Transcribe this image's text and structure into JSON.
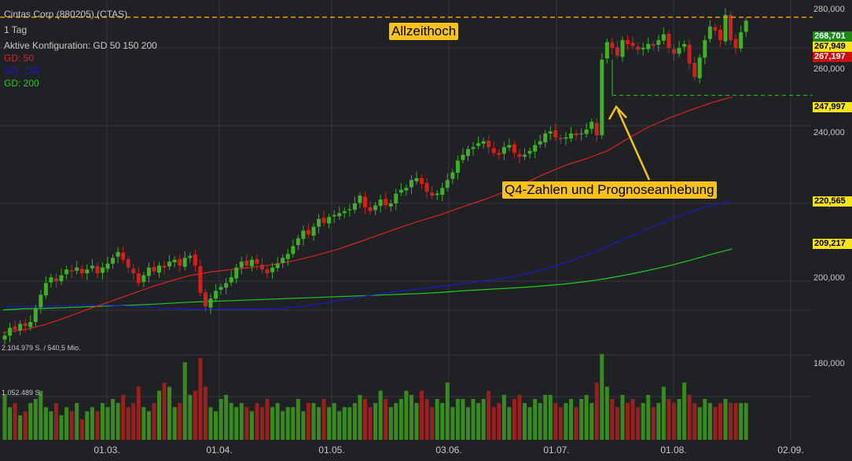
{
  "header": {
    "title": "Cintas Corp (880205) (CTAS)",
    "interval": "1 Tag",
    "config": "Aktive Konfiguration: GD 50 150 200"
  },
  "legend": [
    {
      "label": "GD: 50",
      "color": "#dd2222"
    },
    {
      "label": "GD: 150",
      "color": "#1a1acc"
    },
    {
      "label": "GD: 200",
      "color": "#22cc22"
    }
  ],
  "annotations": {
    "allzeithoch": "Allzeithoch",
    "q4": "Q4-Zahlen und Prognoseanhebung"
  },
  "volume_labels": {
    "top": "2.104.979 S. / 540,5 Mio.",
    "mid": "1.052.489 S."
  },
  "price_tags": [
    {
      "text": "268,701",
      "bg": "#1c8a1c",
      "fg": "#ffffff"
    },
    {
      "text": "267,949",
      "bg": "#f6e31b",
      "fg": "#000000"
    },
    {
      "text": "267,197",
      "bg": "#cc1010",
      "fg": "#ffffff"
    },
    {
      "text": "247,997",
      "bg": "#f6e31b",
      "fg": "#000000"
    },
    {
      "text": "220,565",
      "bg": "#f6e31b",
      "fg": "#000000"
    },
    {
      "text": "209,217",
      "bg": "#f6e31b",
      "fg": "#000000"
    }
  ],
  "colors": {
    "background": "#1f2125",
    "up": "#3fb028",
    "down": "#d1201e",
    "gd50": "#dd2222",
    "gd150": "#1a1acc",
    "gd200": "#22cc22",
    "annotation": "#f6c21b",
    "ath_line": "#f0a000",
    "support_line": "#22cc22"
  },
  "chart_data": {
    "type": "candlestick",
    "y_axis": {
      "ticks": [
        "280,000",
        "260,000",
        "240,000",
        "220,000",
        "200,000",
        "180,000"
      ],
      "range": [
        178,
        282
      ]
    },
    "x_axis": {
      "ticks": [
        "01.03.",
        "01.04.",
        "01.05.",
        "03.06.",
        "01.07.",
        "01.08.",
        "02.09."
      ]
    },
    "all_time_high": 267.9,
    "support_level": 248.0,
    "close": [
      186.0,
      188.0,
      187.5,
      189.0,
      188.5,
      189.5,
      193.0,
      196.5,
      199.5,
      201.0,
      200.0,
      201.5,
      203.0,
      202.5,
      203.5,
      202.0,
      203.0,
      204.0,
      202.0,
      203.5,
      204.5,
      206.0,
      207.5,
      205.5,
      203.5,
      202.0,
      199.5,
      201.5,
      203.5,
      202.5,
      204.0,
      203.5,
      205.0,
      205.5,
      204.0,
      206.0,
      206.5,
      204.0,
      197.0,
      193.5,
      195.5,
      197.5,
      198.5,
      199.5,
      201.0,
      203.5,
      205.0,
      204.0,
      205.5,
      204.5,
      203.0,
      202.0,
      203.5,
      204.5,
      206.0,
      207.0,
      209.0,
      211.0,
      213.0,
      212.0,
      214.0,
      216.0,
      215.0,
      216.5,
      217.0,
      217.5,
      218.0,
      218.5,
      220.0,
      222.0,
      219.0,
      218.0,
      219.5,
      221.0,
      219.5,
      220.0,
      222.5,
      223.5,
      224.0,
      226.0,
      226.5,
      225.0,
      223.0,
      222.0,
      222.5,
      224.0,
      226.0,
      228.0,
      231.0,
      232.5,
      234.0,
      234.5,
      235.5,
      236.0,
      234.5,
      233.0,
      232.5,
      234.5,
      235.0,
      233.0,
      232.0,
      232.5,
      233.5,
      235.0,
      236.0,
      238.0,
      238.5,
      237.0,
      236.5,
      237.0,
      238.0,
      237.5,
      238.0,
      239.0,
      241.0,
      237.5,
      257.0,
      261.5,
      260.0,
      258.0,
      262.0,
      261.0,
      260.5,
      259.5,
      260.0,
      261.0,
      260.5,
      262.0,
      263.5,
      260.0,
      258.5,
      260.0,
      261.0,
      256.0,
      252.5,
      257.5,
      262.0,
      265.5,
      264.5,
      262.0,
      268.5,
      262.0,
      260.0,
      264.0,
      267.0
    ],
    "volume_million": [
      1.1,
      0.8,
      0.9,
      0.6,
      0.7,
      0.9,
      1.0,
      1.2,
      0.8,
      0.7,
      0.9,
      0.6,
      0.8,
      0.7,
      0.9,
      0.5,
      0.7,
      0.8,
      0.7,
      0.9,
      0.8,
      1.0,
      0.9,
      1.1,
      0.8,
      0.9,
      1.3,
      0.8,
      0.7,
      0.9,
      1.2,
      1.4,
      1.3,
      0.8,
      0.9,
      1.9,
      1.1,
      1.2,
      2.0,
      1.3,
      0.8,
      0.7,
      1.0,
      1.1,
      0.9,
      0.8,
      0.9,
      0.8,
      0.7,
      0.9,
      0.8,
      1.0,
      0.8,
      0.9,
      0.7,
      0.8,
      0.8,
      1.0,
      0.7,
      0.9,
      0.9,
      0.8,
      1.0,
      0.8,
      0.9,
      0.7,
      0.8,
      0.8,
      0.9,
      1.1,
      1.0,
      0.8,
      0.9,
      1.2,
      1.0,
      0.8,
      0.9,
      1.0,
      1.2,
      1.1,
      0.9,
      1.2,
      1.0,
      0.8,
      1.0,
      0.9,
      1.4,
      0.8,
      1.0,
      1.0,
      0.8,
      1.0,
      0.9,
      1.0,
      1.2,
      0.8,
      0.9,
      1.1,
      0.8,
      1.0,
      1.1,
      0.9,
      0.8,
      1.0,
      0.9,
      1.1,
      1.1,
      0.9,
      0.8,
      0.9,
      1.0,
      0.8,
      1.0,
      1.1,
      0.9,
      1.4,
      2.1,
      1.3,
      1.0,
      0.8,
      1.1,
      0.9,
      1.0,
      0.8,
      0.9,
      1.1,
      0.8,
      0.9,
      1.3,
      1.0,
      0.9,
      1.0,
      1.4,
      1.1,
      0.9,
      0.8,
      1.0,
      0.9,
      0.8,
      0.9,
      1.0,
      0.9,
      0.9,
      0.9,
      0.9
    ],
    "gd50": [
      186.8,
      187.5,
      188.8,
      190.6,
      192.6,
      194.5,
      196.4,
      198.3,
      200.0,
      201.5,
      202.4,
      203.0,
      203.6,
      204.3,
      205.3,
      206.6,
      208.1,
      209.9,
      211.8,
      213.7,
      215.5,
      217.1,
      219.0,
      220.8,
      222.8,
      225.1,
      227.6,
      229.8,
      231.5,
      233.5,
      236.7,
      239.7,
      242.0,
      244.0,
      245.9,
      247.4
    ],
    "gd150": [
      193.4,
      193.5,
      193.6,
      193.7,
      193.8,
      193.8,
      193.6,
      193.3,
      193.0,
      192.8,
      192.8,
      192.8,
      192.8,
      192.9,
      193.3,
      194.0,
      194.9,
      195.8,
      196.7,
      197.4,
      198.0,
      198.6,
      199.3,
      200.0,
      200.7,
      201.7,
      203.1,
      204.7,
      206.6,
      208.9,
      211.3,
      213.6,
      215.8,
      217.8,
      219.5,
      220.6
    ],
    "gd200": [
      192.6,
      192.9,
      193.0,
      193.2,
      193.4,
      193.6,
      193.8,
      194.0,
      194.3,
      194.6,
      194.8,
      195.0,
      195.2,
      195.4,
      195.6,
      195.8,
      196.0,
      196.2,
      196.4,
      196.6,
      196.8,
      197.1,
      197.5,
      197.8,
      198.1,
      198.4,
      198.8,
      199.3,
      199.9,
      200.7,
      201.7,
      202.8,
      204.0,
      205.4,
      206.9,
      208.3
    ]
  }
}
